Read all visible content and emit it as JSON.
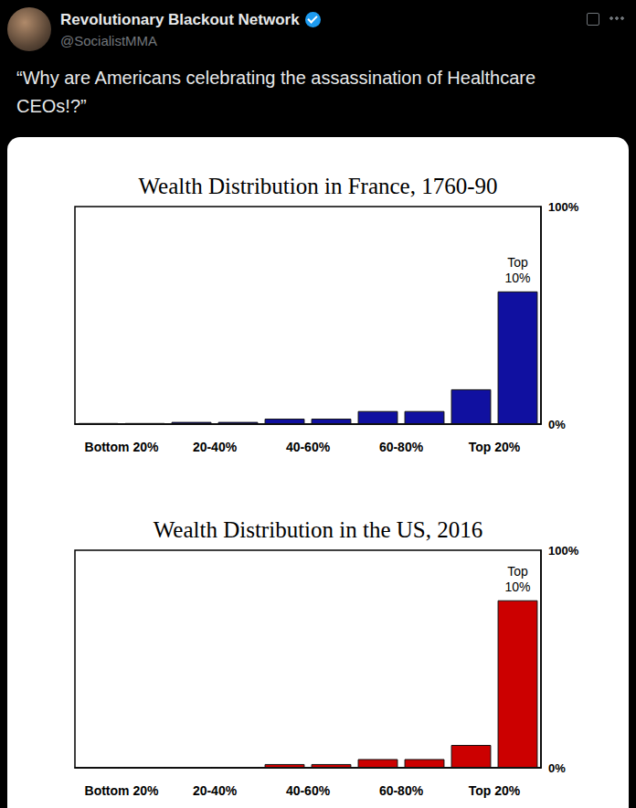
{
  "post": {
    "author": "Revolutionary Blackout Network",
    "handle": "@SocialistMMA",
    "text": "“Why are Americans celebrating the assassination of Healthcare CEOs!?”"
  },
  "chart_data": [
    {
      "type": "bar",
      "title": "Wealth Distribution in France, 1760-90",
      "categories": [
        "Bottom 20%",
        null,
        "20-40%",
        null,
        "40-60%",
        null,
        "60-80%",
        null,
        "Top 20%",
        null
      ],
      "values": [
        0.5,
        0.5,
        1,
        1,
        2.5,
        2.5,
        6,
        6,
        16,
        61
      ],
      "color": "#1010a0",
      "ylim": [
        0,
        100
      ],
      "yticks": [
        {
          "value": 0,
          "label": "0%"
        },
        {
          "value": 100,
          "label": "100%"
        }
      ],
      "grid": false,
      "annotations": [
        {
          "text": "Top 10%",
          "index": 9
        }
      ]
    },
    {
      "type": "bar",
      "title": "Wealth Distribution in the US, 2016",
      "categories": [
        "Bottom 20%",
        null,
        "20-40%",
        null,
        "40-60%",
        null,
        "60-80%",
        null,
        "Top 20%",
        null
      ],
      "values": [
        0.2,
        0.2,
        0.3,
        0.3,
        1.7,
        1.7,
        4,
        4,
        10.5,
        77
      ],
      "color": "#cc0000",
      "ylim": [
        0,
        100
      ],
      "yticks": [
        {
          "value": 0,
          "label": "0%"
        },
        {
          "value": 100,
          "label": "100%"
        }
      ],
      "grid": false,
      "annotations": [
        {
          "text": "Top 10%",
          "index": 9
        }
      ]
    }
  ]
}
